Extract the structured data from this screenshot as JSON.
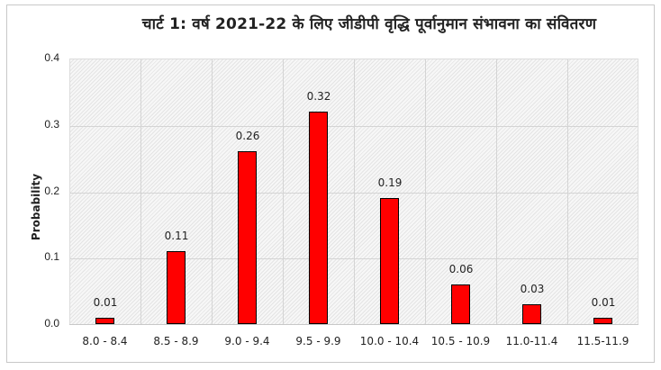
{
  "chart_data": {
    "type": "bar",
    "title": "चार्ट 1: वर्ष 2021-22 के लिए जीडीपी वृद्धि पूर्वानुमान संभावना का संवितरण",
    "xlabel": "",
    "ylabel": "Probability",
    "categories": [
      "8.0 - 8.4",
      "8.5 - 8.9",
      "9.0 - 9.4",
      "9.5 - 9.9",
      "10.0 - 10.4",
      "10.5 - 10.9",
      "11.0-11.4",
      "11.5-11.9"
    ],
    "values": [
      0.01,
      0.11,
      0.26,
      0.32,
      0.19,
      0.06,
      0.03,
      0.01
    ],
    "data_labels": [
      "0.01",
      "0.11",
      "0.26",
      "0.32",
      "0.19",
      "0.06",
      "0.03",
      "0.01"
    ],
    "ylim": [
      0,
      0.4
    ],
    "yticks": [
      "0.0",
      "0.1",
      "0.2",
      "0.3",
      "0.4"
    ],
    "grid": true,
    "legend": "none",
    "bar_color": "#ff0000",
    "bar_edge_color": "#000000"
  }
}
